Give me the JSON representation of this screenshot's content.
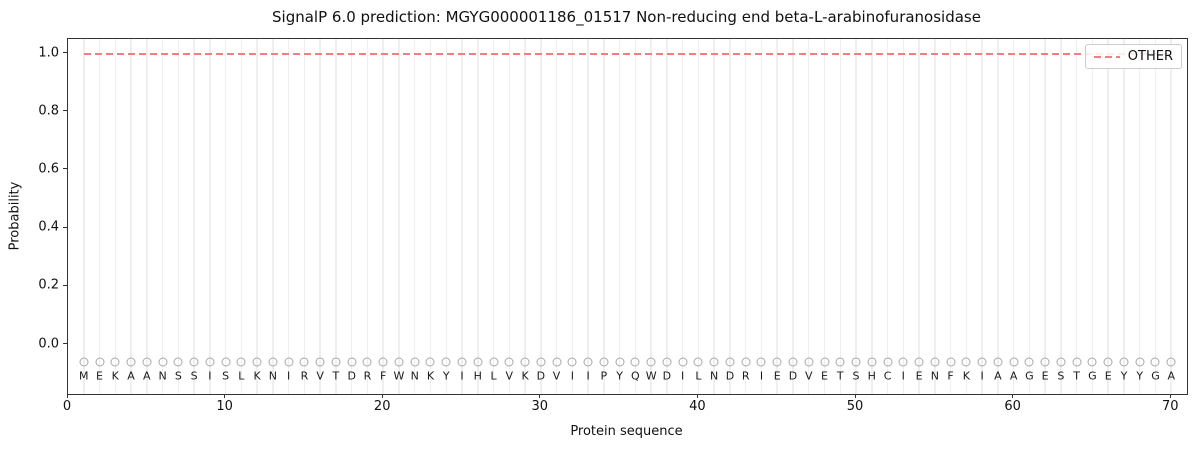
{
  "chart_data": {
    "type": "line",
    "title": "SignalP 6.0 prediction: MGYG000001186_01517 Non-reducing end beta-L-arabinofuranosidase",
    "xlabel": "Protein sequence",
    "ylabel": "Probability",
    "xlim": [
      0,
      71
    ],
    "ylim": [
      -0.17,
      1.05
    ],
    "xticks": [
      "0",
      "10",
      "20",
      "30",
      "40",
      "50",
      "60",
      "70"
    ],
    "yticks": [
      "0.0",
      "0.2",
      "0.4",
      "0.6",
      "0.8",
      "1.0"
    ],
    "grid": {
      "vertical_per_residue": true,
      "color": "#efefef"
    },
    "legend": {
      "position": "upper-right",
      "entries": [
        {
          "label": "OTHER",
          "line_style": "dashed",
          "color": "#f08080"
        }
      ]
    },
    "sequence": "MEKAANSSISLKNIRVTDRFWNKYIHLVKDVIIPYQWDILNDRIEDVETSHCIENFKIAAGESTGEYYGA",
    "sequence_marker": {
      "shape": "open-circle",
      "color": "#a9a9a9",
      "y_value": -0.06
    },
    "letter_y_value": -0.107,
    "series": [
      {
        "name": "OTHER",
        "line_style": "dashed",
        "color": "#f08080",
        "x": [
          1,
          2,
          3,
          4,
          5,
          6,
          7,
          8,
          9,
          10,
          11,
          12,
          13,
          14,
          15,
          16,
          17,
          18,
          19,
          20,
          21,
          22,
          23,
          24,
          25,
          26,
          27,
          28,
          29,
          30,
          31,
          32,
          33,
          34,
          35,
          36,
          37,
          38,
          39,
          40,
          41,
          42,
          43,
          44,
          45,
          46,
          47,
          48,
          49,
          50,
          51,
          52,
          53,
          54,
          55,
          56,
          57,
          58,
          59,
          60,
          61,
          62,
          63,
          64,
          65,
          66,
          67,
          68,
          69,
          70
        ],
        "values": [
          1.0,
          1.0,
          1.0,
          1.0,
          1.0,
          1.0,
          1.0,
          1.0,
          1.0,
          1.0,
          1.0,
          1.0,
          1.0,
          1.0,
          1.0,
          1.0,
          1.0,
          1.0,
          1.0,
          1.0,
          1.0,
          1.0,
          1.0,
          1.0,
          1.0,
          1.0,
          1.0,
          1.0,
          1.0,
          1.0,
          1.0,
          1.0,
          1.0,
          1.0,
          1.0,
          1.0,
          1.0,
          1.0,
          1.0,
          1.0,
          1.0,
          1.0,
          1.0,
          1.0,
          1.0,
          1.0,
          1.0,
          1.0,
          1.0,
          1.0,
          1.0,
          1.0,
          1.0,
          1.0,
          1.0,
          1.0,
          1.0,
          1.0,
          1.0,
          1.0,
          1.0,
          1.0,
          1.0,
          1.0,
          1.0,
          1.0,
          1.0,
          1.0,
          1.0,
          1.0
        ]
      }
    ]
  }
}
